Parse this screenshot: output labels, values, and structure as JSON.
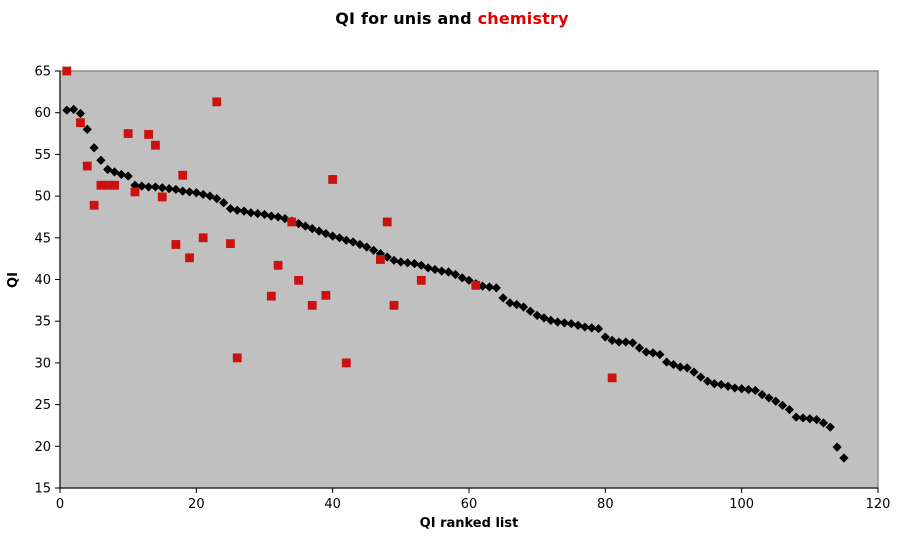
{
  "chart": {
    "title_main": "QI for unis and ",
    "title_highlight": "chemistry",
    "xlabel": "QI ranked list",
    "ylabel": "QI"
  },
  "chart_data": {
    "type": "scatter",
    "title": "QI for unis and chemistry",
    "xlabel": "QI ranked list",
    "ylabel": "QI",
    "xlim": [
      0,
      120
    ],
    "ylim": [
      15,
      65
    ],
    "x_ticks": [
      0,
      20,
      40,
      60,
      80,
      100,
      120
    ],
    "y_ticks": [
      15,
      20,
      25,
      30,
      35,
      40,
      45,
      50,
      55,
      60,
      65
    ],
    "grid": false,
    "legend": "none",
    "colors": {
      "plot_bg": "#C0C0C0",
      "plot_border": "#8C8C8C",
      "axis": "#000000",
      "unis": "#000000",
      "chemistry": "#CC1111",
      "title_highlight": "#E00000"
    },
    "series": [
      {
        "name": "unis",
        "marker": "diamond",
        "color": "#000000",
        "x_is_rank_starting_at_1": true,
        "values": [
          60.3,
          60.4,
          59.9,
          58.0,
          55.8,
          54.3,
          53.2,
          52.9,
          52.6,
          52.4,
          51.3,
          51.2,
          51.1,
          51.1,
          51.0,
          50.9,
          50.8,
          50.6,
          50.5,
          50.4,
          50.2,
          50.0,
          49.7,
          49.2,
          48.5,
          48.3,
          48.2,
          48.0,
          47.9,
          47.8,
          47.6,
          47.5,
          47.3,
          47.0,
          46.7,
          46.4,
          46.1,
          45.8,
          45.5,
          45.2,
          45.0,
          44.7,
          44.5,
          44.2,
          43.9,
          43.5,
          43.1,
          42.7,
          42.3,
          42.1,
          42.0,
          41.9,
          41.7,
          41.4,
          41.2,
          41.0,
          40.9,
          40.6,
          40.2,
          39.9,
          39.5,
          39.2,
          39.1,
          39.0,
          37.8,
          37.2,
          37.0,
          36.7,
          36.2,
          35.7,
          35.4,
          35.1,
          34.9,
          34.8,
          34.7,
          34.5,
          34.3,
          34.2,
          34.1,
          33.1,
          32.7,
          32.5,
          32.5,
          32.4,
          31.8,
          31.3,
          31.2,
          31.0,
          30.1,
          29.8,
          29.5,
          29.4,
          28.9,
          28.3,
          27.8,
          27.5,
          27.4,
          27.2,
          27.0,
          26.9,
          26.8,
          26.7,
          26.2,
          25.8,
          25.4,
          24.9,
          24.4,
          23.5,
          23.4,
          23.3,
          23.2,
          22.8,
          22.3,
          19.9,
          18.6
        ]
      },
      {
        "name": "chemistry",
        "marker": "square",
        "color": "#CC1111",
        "points": [
          [
            1,
            65.0
          ],
          [
            3,
            58.8
          ],
          [
            4,
            53.6
          ],
          [
            5,
            48.9
          ],
          [
            6,
            51.3
          ],
          [
            7,
            51.3
          ],
          [
            8,
            51.3
          ],
          [
            10,
            57.5
          ],
          [
            11,
            50.5
          ],
          [
            13,
            57.4
          ],
          [
            14,
            56.1
          ],
          [
            15,
            49.9
          ],
          [
            17,
            44.2
          ],
          [
            18,
            52.5
          ],
          [
            19,
            42.6
          ],
          [
            21,
            45.0
          ],
          [
            23,
            61.3
          ],
          [
            25,
            44.3
          ],
          [
            26,
            30.6
          ],
          [
            31,
            38.0
          ],
          [
            32,
            41.7
          ],
          [
            34,
            46.9
          ],
          [
            35,
            39.9
          ],
          [
            37,
            36.9
          ],
          [
            39,
            38.1
          ],
          [
            40,
            52.0
          ],
          [
            42,
            30.0
          ],
          [
            47,
            42.4
          ],
          [
            48,
            46.9
          ],
          [
            49,
            36.9
          ],
          [
            53,
            39.9
          ],
          [
            61,
            39.3
          ],
          [
            81,
            28.2
          ]
        ]
      }
    ]
  }
}
